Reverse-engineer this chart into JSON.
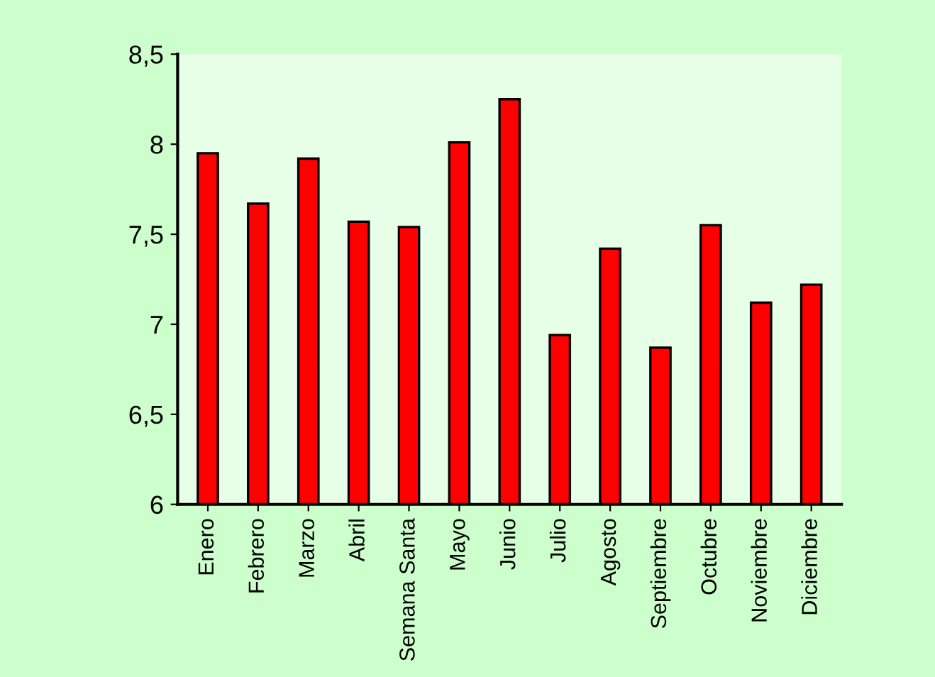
{
  "chart_data": {
    "type": "bar",
    "categories": [
      "Enero",
      "Febrero",
      "Marzo",
      "Abril",
      "Semana Santa",
      "Mayo",
      "Junio",
      "Julio",
      "Agosto",
      "Septiembre",
      "Octubre",
      "Noviembre",
      "Diciembre"
    ],
    "values": [
      7.95,
      7.67,
      7.92,
      7.57,
      7.54,
      8.01,
      8.25,
      6.94,
      7.42,
      6.87,
      7.55,
      7.12,
      7.22
    ],
    "color": "#ff0000",
    "ylim": [
      6,
      8.5
    ],
    "yticks": [
      6,
      {
        "value": 6.5,
        "label": "6,5"
      },
      7,
      {
        "value": 7.5,
        "label": "7,5"
      },
      8,
      {
        "value": 8.5,
        "label": "8,5"
      }
    ],
    "grid": false,
    "legend": false
  }
}
